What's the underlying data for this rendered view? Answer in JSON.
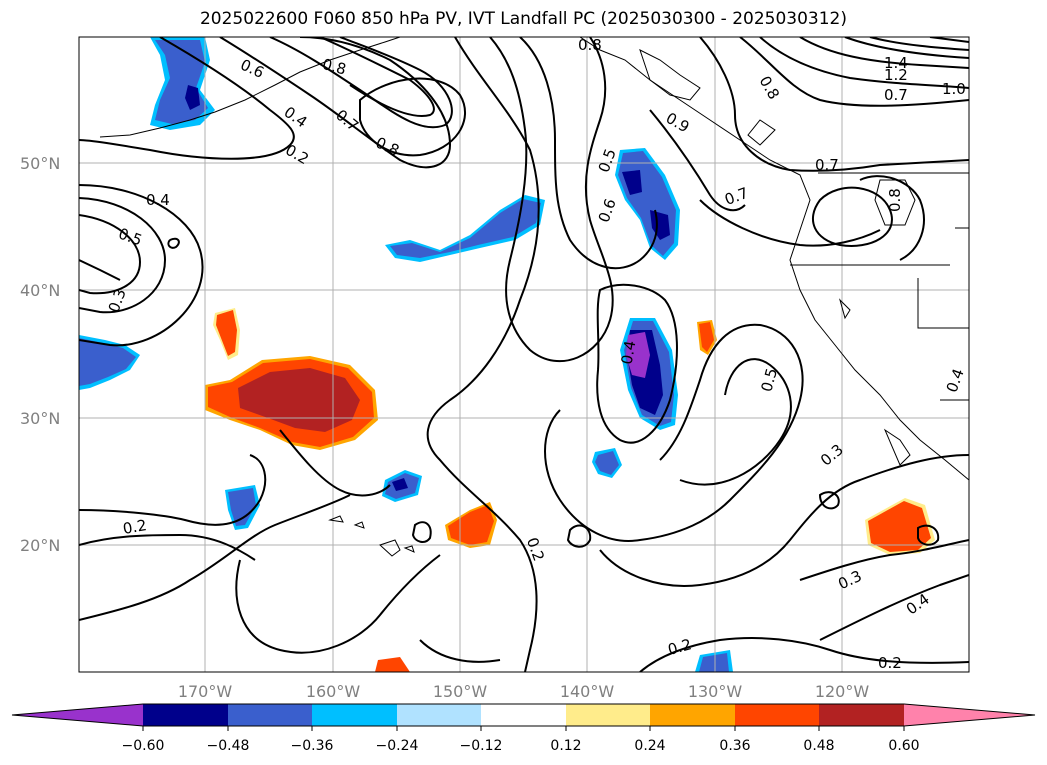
{
  "title": "2025022600 F060 850 hPa PV, IVT Landfall PC (2025030300 - 2025030312)",
  "map": {
    "lat_ticks": [
      "50°N",
      "40°N",
      "30°N",
      "20°N"
    ],
    "lon_ticks": [
      "170°W",
      "160°W",
      "150°W",
      "140°W",
      "130°W",
      "120°W"
    ],
    "contour_labels": [
      {
        "text": "0.6"
      },
      {
        "text": "0.8"
      },
      {
        "text": "0.4"
      },
      {
        "text": "0.7"
      },
      {
        "text": "0.2"
      },
      {
        "text": "0.8"
      },
      {
        "text": "0.8"
      },
      {
        "text": "0.4"
      },
      {
        "text": "0.5"
      },
      {
        "text": "0.3"
      },
      {
        "text": "0.5"
      },
      {
        "text": "0.6"
      },
      {
        "text": "0.4"
      },
      {
        "text": "0.9"
      },
      {
        "text": "0.8"
      },
      {
        "text": "1.4"
      },
      {
        "text": "1.2"
      },
      {
        "text": "0.7"
      },
      {
        "text": "1.0"
      },
      {
        "text": "0.7"
      },
      {
        "text": "0.7"
      },
      {
        "text": "0.8"
      },
      {
        "text": "0.5"
      },
      {
        "text": "0.3"
      },
      {
        "text": "0.4"
      },
      {
        "text": "0.2"
      },
      {
        "text": "0.2"
      },
      {
        "text": "0.2"
      },
      {
        "text": "0.2"
      },
      {
        "text": "0.3"
      },
      {
        "text": "0.4"
      }
    ]
  },
  "colorbar": {
    "tick_labels": [
      "−0.60",
      "−0.48",
      "−0.36",
      "−0.24",
      "−0.12",
      "0.12",
      "0.24",
      "0.36",
      "0.48",
      "0.60"
    ],
    "colors": [
      "#9932cc",
      "#00008b",
      "#3a5fcd",
      "#00bfff",
      "#b0e2ff",
      "#ffffff",
      "#ffec8b",
      "#ffa500",
      "#ff4500",
      "#b22222",
      "#ff82ab"
    ]
  },
  "colors": {
    "neg_extreme": "#9932cc",
    "neg_strong": "#00008b",
    "neg_medium": "#3a5fcd",
    "neg_light": "#00bfff",
    "neg_faint": "#b0e2ff",
    "pos_faint": "#ffec8b",
    "pos_light": "#ffa500",
    "pos_medium": "#ff4500",
    "pos_strong": "#b22222",
    "pos_extreme": "#ff82ab"
  }
}
